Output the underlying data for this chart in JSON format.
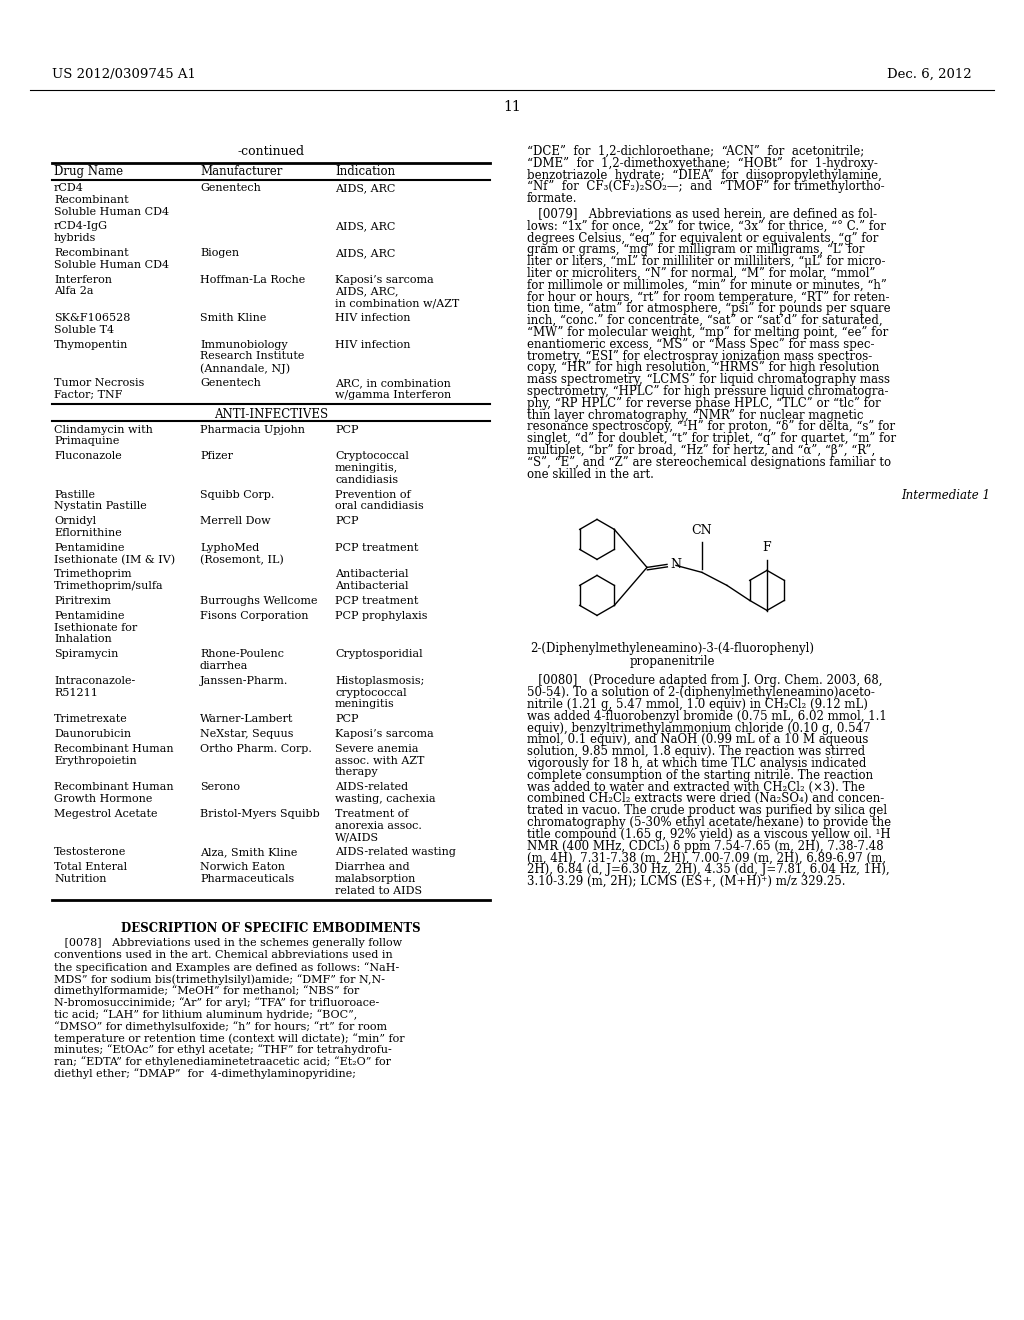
{
  "bg_color": "#ffffff",
  "page_number": "11",
  "patent_left": "US 2012/0309745 A1",
  "patent_right": "Dec. 6, 2012",
  "table_title": "-continued",
  "col_headers": [
    "Drug Name",
    "Manufacturer",
    "Indication"
  ],
  "table_rows": [
    [
      "rCD4\nRecombinant\nSoluble Human CD4",
      "Genentech",
      "AIDS, ARC"
    ],
    [
      "rCD4-IgG\nhybrids",
      "",
      "AIDS, ARC"
    ],
    [
      "Recombinant\nSoluble Human CD4",
      "Biogen",
      "AIDS, ARC"
    ],
    [
      "Interferon\nAlfa 2a",
      "Hoffman-La Roche",
      "Kaposi’s sarcoma\nAIDS, ARC,\nin combination w/AZT"
    ],
    [
      "SK&F106528\nSoluble T4",
      "Smith Kline",
      "HIV infection"
    ],
    [
      "Thymopentin",
      "Immunobiology\nResearch Institute\n(Annandale, NJ)",
      "HIV infection"
    ],
    [
      "Tumor Necrosis\nFactor; TNF",
      "Genentech",
      "ARC, in combination\nw/gamma Interferon"
    ],
    [
      "ANTI-INFECTIVES",
      "",
      ""
    ],
    [
      "Clindamycin with\nPrimaquine",
      "Pharmacia Upjohn",
      "PCP"
    ],
    [
      "Fluconazole",
      "Pfizer",
      "Cryptococcal\nmeningitis,\ncandidiasis"
    ],
    [
      "Pastille\nNystatin Pastille",
      "Squibb Corp.",
      "Prevention of\noral candidiasis"
    ],
    [
      "Ornidyl\nEflornithine",
      "Merrell Dow",
      "PCP"
    ],
    [
      "Pentamidine\nIsethionate (IM & IV)",
      "LyphoMed\n(Rosemont, IL)",
      "PCP treatment"
    ],
    [
      "Trimethoprim\nTrimethoprim/sulfa",
      "",
      "Antibacterial\nAntibacterial"
    ],
    [
      "Piritrexim",
      "Burroughs Wellcome",
      "PCP treatment"
    ],
    [
      "Pentamidine\nIsethionate for\nInhalation",
      "Fisons Corporation",
      "PCP prophylaxis"
    ],
    [
      "Spiramycin",
      "Rhone-Poulenc\ndiarrhea",
      "Cryptosporidial"
    ],
    [
      "Intraconazole-\nR51211",
      "Janssen-Pharm.",
      "Histoplasmosis;\ncryptococcal\nmeningitis"
    ],
    [
      "Trimetrexate",
      "Warner-Lambert",
      "PCP"
    ],
    [
      "Daunorubicin",
      "NeXstar, Sequus",
      "Kaposi’s sarcoma"
    ],
    [
      "Recombinant Human\nErythropoietin",
      "Ortho Pharm. Corp.",
      "Severe anemia\nassoc. with AZT\ntherapy"
    ],
    [
      "Recombinant Human\nGrowth Hormone",
      "Serono",
      "AIDS-related\nwasting, cachexia"
    ],
    [
      "Megestrol Acetate",
      "Bristol-Myers Squibb",
      "Treatment of\nanorexia assoc.\nW/AIDS"
    ],
    [
      "Testosterone",
      "Alza, Smith Kline",
      "AIDS-related wasting"
    ],
    [
      "Total Enteral\nNutrition",
      "Norwich Eaton\nPharmaceuticals",
      "Diarrhea and\nmalabsorption\nrelated to AIDS"
    ]
  ],
  "right_top_lines": [
    "“DCE”  for  1,2-dichloroethane;  “ACN”  for  acetonitrile;",
    "“DME”  for  1,2-dimethoxyethane;  “HOBt”  for  1-hydroxy-",
    "benzotriazole  hydrate;  “DIEA”  for  diisopropylethylamine,",
    "“Nf”  for  CF₃(CF₂)₂SO₂—;  and  “TMOF” for trimethylortho-",
    "formate."
  ],
  "para_079_lines": [
    "   [0079]   Abbreviations as used herein, are defined as fol-",
    "lows: “1x” for once, “2x” for twice, “3x” for thrice, “° C.” for",
    "degrees Celsius, “eq” for equivalent or equivalents, “g” for",
    "gram or grams, “mg” for milligram or milligrams, “L” for",
    "liter or liters, “mL” for milliliter or milliliters, “μL” for micro-",
    "liter or microliters, “N” for normal, “M” for molar, “mmol”",
    "for millimole or millimoles, “min” for minute or minutes, “h”",
    "for hour or hours, “rt” for room temperature, “RT” for reten-",
    "tion time, “atm” for atmosphere, “psi” for pounds per square",
    "inch, “conc.” for concentrate, “sat” or “sat’d” for saturated,",
    "“MW” for molecular weight, “mp” for melting point, “ee” for",
    "enantiomeric excess, “MS” or “Mass Spec” for mass spec-",
    "trometry, “ESI” for electrospray ionization mass spectros-",
    "copy, “HR” for high resolution, “HRMS” for high resolution",
    "mass spectrometry, “LCMS” for liquid chromatography mass",
    "spectrometry, “HPLC” for high pressure liquid chromatogra-",
    "phy, “RP HPLC” for reverse phase HPLC, “TLC” or “tlc” for",
    "thin layer chromatography, “NMR” for nuclear magnetic",
    "resonance spectroscopy, “¹H” for proton, “δ” for delta, “s” for",
    "singlet, “d” for doublet, “t” for triplet, “q” for quartet, “m” for",
    "multiplet, “br” for broad, “Hz” for hertz, and “α”, “β”, “R”,",
    "“S”, “E”, and “Z” are stereochemical designations familiar to",
    "one skilled in the art."
  ],
  "intermediate_label": "Intermediate 1",
  "compound_name_line1": "2-(Diphenylmethyleneamino)-3-(4-fluorophenyl)",
  "compound_name_line2": "propanenitrile",
  "para_080_lines": [
    "   [0080]   (Procedure adapted from J. Org. Chem. 2003, 68,",
    "50-54). To a solution of 2-(diphenylmethyleneamino)aceto-",
    "nitrile (1.21 g, 5.47 mmol, 1.0 equiv) in CH₂Cl₂ (9.12 mL)",
    "was added 4-fluorobenzyl bromide (0.75 mL, 6.02 mmol, 1.1",
    "equiv), benzyltrimethylammonium chloride (0.10 g, 0.547",
    "mmol, 0.1 equiv), and NaOH (0.99 mL of a 10 M aqueous",
    "solution, 9.85 mmol, 1.8 equiv). The reaction was stirred",
    "vigorously for 18 h, at which time TLC analysis indicated",
    "complete consumption of the starting nitrile. The reaction",
    "was added to water and extracted with CH₂Cl₂ (×3). The",
    "combined CH₂Cl₂ extracts were dried (Na₂SO₄) and concen-",
    "trated in vacuo. The crude product was purified by silica gel",
    "chromatography (5-30% ethyl acetate/hexane) to provide the",
    "title compound (1.65 g, 92% yield) as a viscous yellow oil. ¹H",
    "NMR (400 MHz, CDCl₃) δ ppm 7.54-7.65 (m, 2H), 7.38-7.48",
    "(m, 4H), 7.31-7.38 (m, 2H), 7.00-7.09 (m, 2H), 6.89-6.97 (m,",
    "2H), 6.84 (d, J=6.30 Hz, 2H), 4.35 (dd, J=7.81, 6.04 Hz, 1H),",
    "3.10-3.29 (m, 2H); LCMS (ES+, (M+H)⁺) m/z 329.25."
  ],
  "description_header": "DESCRIPTION OF SPECIFIC EMBODIMENTS",
  "para_078_lines": [
    "   [0078]   Abbreviations used in the schemes generally follow",
    "conventions used in the art. Chemical abbreviations used in",
    "the specification and Examples are defined as follows: “NaH-",
    "MDS” for sodium bis(trimethylsilyl)amide; “DMF” for N,N-",
    "dimethylformamide; “MeOH” for methanol; “NBS” for",
    "N-bromosuccinimide; “Ar” for aryl; “TFA” for trifluoroace-",
    "tic acid; “LAH” for lithium aluminum hydride; “BOC”,",
    "“DMSO” for dimethylsulfoxide; “h” for hours; “rt” for room",
    "temperature or retention time (context will dictate); “min” for",
    "minutes; “EtOAc” for ethyl acetate; “THF” for tetrahydrofu-",
    "ran; “EDTA” for ethylenediaminetetraacetic acid; “Et₂O” for",
    "diethyl ether; “DMAP”  for  4-dimethylaminopyridine;"
  ]
}
